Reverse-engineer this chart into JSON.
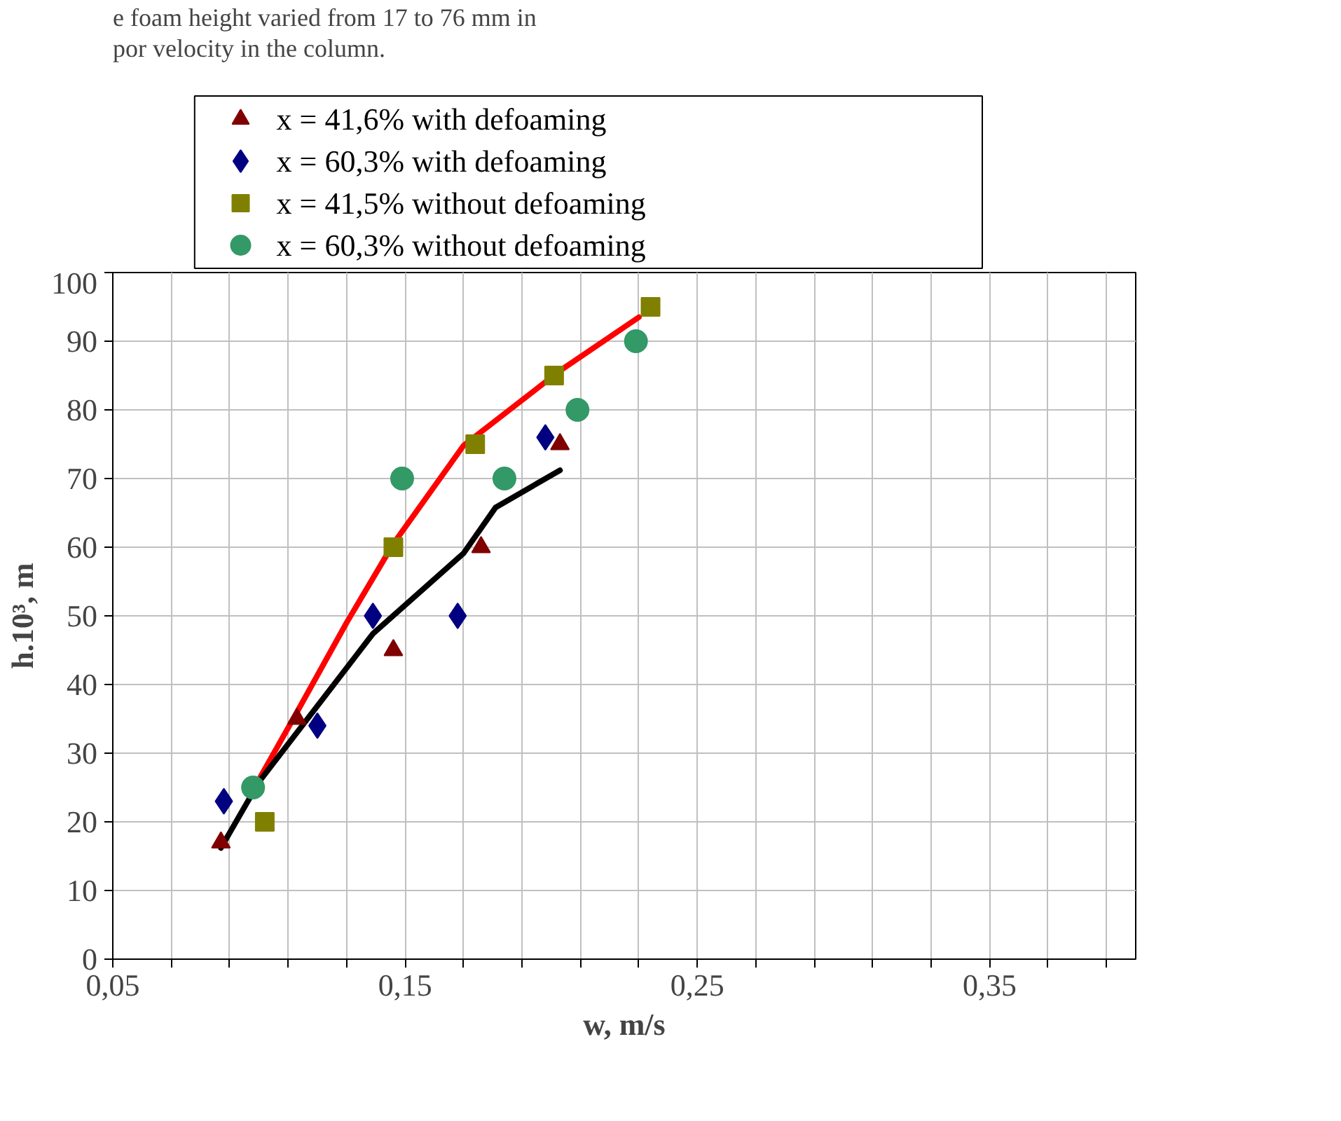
{
  "chart_data": {
    "type": "scatter",
    "xlabel": "w, m/s",
    "ylabel": "h.10³, m",
    "annotations": [
      "e foam height varied from 17 to 76 mm in",
      "por velocity in the column."
    ],
    "xlim": [
      0.05,
      0.4
    ],
    "xticks": [
      {
        "value": 0.05,
        "label": "0,05"
      },
      {
        "value": 0.07,
        "label": null
      },
      {
        "value": 0.09,
        "label": null
      },
      {
        "value": 0.11,
        "label": null
      },
      {
        "value": 0.13,
        "label": null
      },
      {
        "value": 0.15,
        "label": "0,15"
      },
      {
        "value": 0.17,
        "label": null
      },
      {
        "value": 0.19,
        "label": null
      },
      {
        "value": 0.21,
        "label": null
      },
      {
        "value": 0.23,
        "label": null
      },
      {
        "value": 0.25,
        "label": "0,25"
      },
      {
        "value": 0.27,
        "label": null
      },
      {
        "value": 0.29,
        "label": null
      },
      {
        "value": 0.31,
        "label": null
      },
      {
        "value": 0.33,
        "label": null
      },
      {
        "value": 0.35,
        "label": "0,35"
      },
      {
        "value": 0.37,
        "label": null
      },
      {
        "value": 0.39,
        "label": null
      }
    ],
    "ylim": [
      0,
      100
    ],
    "yticks": [
      0,
      10,
      20,
      30,
      40,
      50,
      60,
      70,
      80,
      90,
      100
    ],
    "grid": true,
    "legend": "top",
    "series": [
      {
        "name": "x = 41,6% with defoaming",
        "color": "#800000",
        "marker": "triangle",
        "x": [
          0.087,
          0.113,
          0.146,
          0.176,
          0.203
        ],
        "values": [
          17,
          35,
          45,
          60,
          75
        ]
      },
      {
        "name": "x = 60,3% with defoaming",
        "color": "#000080",
        "marker": "diamond",
        "x": [
          0.088,
          0.12,
          0.139,
          0.168,
          0.198
        ],
        "values": [
          23,
          34,
          50,
          50,
          76
        ]
      },
      {
        "name": "x = 41,5% without defoaming",
        "color": "#808000",
        "marker": "square",
        "x": [
          0.102,
          0.146,
          0.174,
          0.201,
          0.234
        ],
        "values": [
          20,
          60,
          75,
          85,
          95
        ]
      },
      {
        "name": "x = 60,3% without defoaming",
        "color": "#339966",
        "marker": "circle",
        "x": [
          0.098,
          0.149,
          0.184,
          0.209,
          0.229
        ],
        "values": [
          25,
          70,
          70,
          80,
          90
        ]
      },
      {
        "type": "line",
        "color": "#ff0000",
        "marker": "none",
        "x": [
          0.099,
          0.112,
          0.13,
          0.146,
          0.17,
          0.203,
          0.23
        ],
        "values": [
          25.4,
          35.2,
          49.0,
          60.5,
          74.8,
          85.7,
          93.5
        ]
      },
      {
        "type": "line",
        "color": "#000000",
        "marker": "none",
        "x": [
          0.087,
          0.1,
          0.139,
          0.17,
          0.181,
          0.203
        ],
        "values": [
          16.2,
          25.8,
          47.4,
          59.1,
          65.8,
          71.2
        ]
      }
    ]
  }
}
